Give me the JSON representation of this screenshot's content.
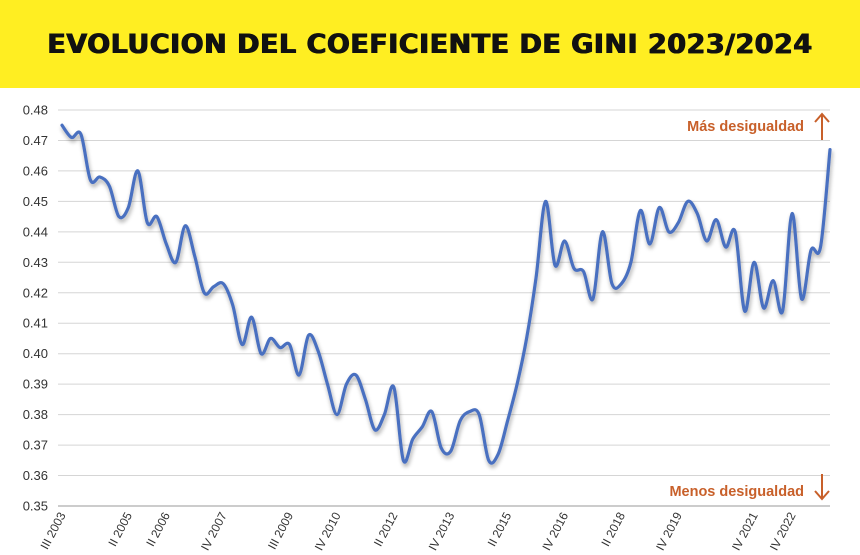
{
  "banner": {
    "title": "EVOLUCION DEL COEFICIENTE DE GINI 2023/2024"
  },
  "chart_data": {
    "type": "line",
    "title": "EVOLUCION DEL COEFICIENTE DE GINI 2023/2024",
    "xlabel": "",
    "ylabel": "",
    "ylim": [
      0.35,
      0.48
    ],
    "y_ticks": [
      0.48,
      0.47,
      0.46,
      0.45,
      0.44,
      0.43,
      0.42,
      0.41,
      0.4,
      0.39,
      0.38,
      0.37,
      0.36,
      0.35
    ],
    "y_tick_labels": [
      "0.48",
      "0.47",
      "0.46",
      "0.45",
      "0.44",
      "0.43",
      "0.42",
      "0.41",
      "0.40",
      "0.39",
      "0.38",
      "0.37",
      "0.36",
      "0.35"
    ],
    "x_tick_labels": [
      {
        "label": "III 2003",
        "index": 0
      },
      {
        "label": "II 2005",
        "index": 7
      },
      {
        "label": "II 2006",
        "index": 11
      },
      {
        "label": "IV 2007",
        "index": 17
      },
      {
        "label": "III 2009",
        "index": 24
      },
      {
        "label": "IV 2010",
        "index": 29
      },
      {
        "label": "II 2012",
        "index": 35
      },
      {
        "label": "IV 2013",
        "index": 41
      },
      {
        "label": "II 2015",
        "index": 47
      },
      {
        "label": "IV 2016",
        "index": 53
      },
      {
        "label": "II 2018",
        "index": 59
      },
      {
        "label": "IV 2019",
        "index": 65
      },
      {
        "label": "IV 2021",
        "index": 73
      },
      {
        "label": "IV 2022",
        "index": 77
      }
    ],
    "grid": true,
    "line_color": "#4A6FC0",
    "annotation_color": "#C8602A",
    "annotations": {
      "top": "Más desigualdad",
      "bottom": "Menos desigualdad"
    },
    "series": [
      {
        "values": [
          0.475,
          0.471,
          0.472,
          0.457,
          0.458,
          0.455,
          0.445,
          0.448,
          0.46,
          0.443,
          0.445,
          0.436,
          0.43,
          0.442,
          0.432,
          0.42,
          0.422,
          0.423,
          0.416,
          0.403,
          0.412,
          0.4,
          0.405,
          0.402,
          0.403,
          0.393,
          0.406,
          0.401,
          0.39,
          0.38,
          0.39,
          0.393,
          0.385,
          0.375,
          0.38,
          0.389,
          0.365,
          0.372,
          0.376,
          0.381,
          0.369,
          0.368,
          0.378,
          0.381,
          0.38,
          0.365,
          0.367,
          0.378,
          0.39,
          0.405,
          0.425,
          0.45,
          0.429,
          0.437,
          0.428,
          0.427,
          0.418,
          0.44,
          0.423,
          0.423,
          0.43,
          0.447,
          0.436,
          0.448,
          0.44,
          0.443,
          0.45,
          0.446,
          0.437,
          0.444,
          0.435,
          0.44,
          0.414,
          0.43,
          0.415,
          0.424,
          0.414,
          0.446,
          0.418,
          0.434,
          0.435,
          0.467
        ]
      }
    ]
  }
}
